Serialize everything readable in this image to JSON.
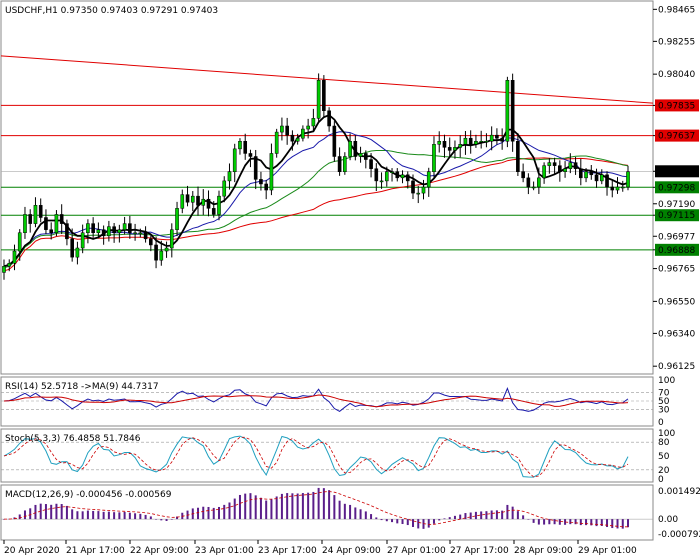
{
  "chart_data": [
    {
      "type": "candlestick",
      "panel": "price",
      "header": "USDCHF,H1  0.97350 0.97403 0.97291 0.97403",
      "ylim": [
        0.961,
        0.985
      ],
      "y_ticks": [
        "0.98465",
        "0.98255",
        "0.98040",
        "0.97835",
        "0.97637",
        "0.97403",
        "0.97298",
        "0.97190",
        "0.97115",
        "0.96977",
        "0.96888",
        "0.96765",
        "0.96550",
        "0.96340",
        "0.96125"
      ],
      "y_tick_values": [
        0.98465,
        0.98255,
        0.9804,
        0.97835,
        0.97637,
        0.97403,
        0.97298,
        0.9719,
        0.97115,
        0.96977,
        0.96888,
        0.96765,
        0.9655,
        0.9634,
        0.96125
      ],
      "x_ticks": [
        "20 Apr 2020",
        "21 Apr 17:00",
        "22 Apr 09:00",
        "23 Apr 01:00",
        "23 Apr 17:00",
        "24 Apr 09:00",
        "27 Apr 01:00",
        "27 Apr 17:00",
        "28 Apr 09:00",
        "29 Apr 01:00"
      ],
      "close": [
        0.9678,
        0.968,
        0.9688,
        0.97,
        0.9712,
        0.9706,
        0.9718,
        0.971,
        0.9702,
        0.97,
        0.9712,
        0.9706,
        0.9696,
        0.9684,
        0.969,
        0.97,
        0.9706,
        0.97,
        0.9702,
        0.9698,
        0.9704,
        0.97,
        0.9702,
        0.9706,
        0.97,
        0.97,
        0.97,
        0.9696,
        0.9692,
        0.9682,
        0.9688,
        0.969,
        0.9702,
        0.9716,
        0.9725,
        0.972,
        0.9724,
        0.9718,
        0.9722,
        0.9716,
        0.9712,
        0.9724,
        0.9734,
        0.974,
        0.9755,
        0.976,
        0.9752,
        0.975,
        0.9735,
        0.9732,
        0.9728,
        0.9752,
        0.9766,
        0.977,
        0.9764,
        0.976,
        0.9762,
        0.9768,
        0.977,
        0.9775,
        0.98,
        0.978,
        0.977,
        0.975,
        0.974,
        0.975,
        0.976,
        0.975,
        0.9752,
        0.9748,
        0.9742,
        0.9734,
        0.9734,
        0.974,
        0.974,
        0.9736,
        0.9738,
        0.9734,
        0.9726,
        0.9726,
        0.973,
        0.974,
        0.9758,
        0.976,
        0.9756,
        0.9754,
        0.9756,
        0.9758,
        0.9762,
        0.9758,
        0.976,
        0.976,
        0.976,
        0.9764,
        0.9762,
        0.976,
        0.98,
        0.976,
        0.974,
        0.9736,
        0.973,
        0.973,
        0.9736,
        0.9744,
        0.9746,
        0.9744,
        0.974,
        0.9742,
        0.9746,
        0.9742,
        0.9736,
        0.974,
        0.9738,
        0.9734,
        0.9738,
        0.973,
        0.9728,
        0.973,
        0.973,
        0.974
      ],
      "levels": {
        "red": [
          0.97835,
          0.97637
        ],
        "green": [
          0.97298,
          0.97115,
          0.96888
        ],
        "trendline": [
          [
            0,
            0.9816
          ],
          [
            120,
            0.9785
          ]
        ]
      },
      "current_price": "0.97403",
      "colors": {
        "up": "#00cc00",
        "down": "#000000",
        "red_line": "#e00000",
        "green_line": "#008000",
        "ma_black": "#000000",
        "ma_blue": "#1a1aaa",
        "ma_green": "#1a8a1a",
        "ma_red": "#e00000"
      }
    },
    {
      "type": "line",
      "panel": "RSI",
      "label": "RSI(14) 52.5718  ->MA(9) 44.7317",
      "ylim": [
        0,
        100
      ],
      "y_ticks": [
        "100",
        "70",
        "50",
        "30",
        "0"
      ],
      "y_tick_values": [
        100,
        70,
        50,
        30,
        0
      ],
      "levels": [
        70,
        50,
        30
      ]
    },
    {
      "type": "line",
      "panel": "Stoch",
      "label": "Stoch(5,3,3) 76.4858 51.7846",
      "ylim": [
        0,
        100
      ],
      "y_ticks": [
        "100",
        "80",
        "50",
        "20",
        "0"
      ],
      "y_tick_values": [
        100,
        80,
        50,
        20,
        0
      ],
      "levels": [
        80,
        20
      ]
    },
    {
      "type": "bar",
      "panel": "MACD",
      "label": "MACD(12,26,9) -0.000456 -0.000569",
      "ylim": [
        -0.00095,
        0.0016
      ],
      "y_ticks": [
        "0.001492",
        "0.00",
        "-0.000792"
      ],
      "y_tick_values": [
        0.001492,
        0.0,
        -0.000792
      ]
    }
  ]
}
